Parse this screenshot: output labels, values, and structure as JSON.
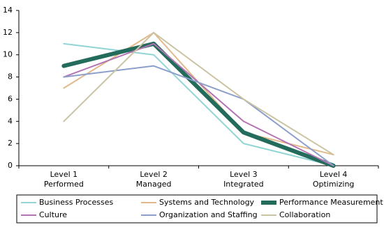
{
  "chart_data": {
    "type": "line",
    "categories": [
      "Level 1 Performed",
      "Level 2 Managed",
      "Level 3 Integrated",
      "Level 4 Optimizing"
    ],
    "series": [
      {
        "name": "Business Processes",
        "color": "#93d4d6",
        "width": 2,
        "values": [
          11,
          10,
          2,
          0
        ]
      },
      {
        "name": "Systems and Technology",
        "color": "#e2b98c",
        "width": 2,
        "values": [
          7,
          12,
          3,
          1
        ]
      },
      {
        "name": "Performance Measurement",
        "color": "#236b5b",
        "width": 6,
        "values": [
          9,
          11,
          3,
          0
        ]
      },
      {
        "name": "Culture",
        "color": "#b374b3",
        "width": 2,
        "values": [
          8,
          11,
          4,
          0
        ]
      },
      {
        "name": "Organization and Staffing",
        "color": "#8c9fcb",
        "width": 2,
        "values": [
          8,
          9,
          6,
          0
        ]
      },
      {
        "name": "Collaboration",
        "color": "#cbc4a2",
        "width": 2,
        "values": [
          4,
          12,
          6,
          1
        ]
      }
    ],
    "ylim": [
      0,
      14
    ],
    "yticks": [
      0,
      2,
      4,
      6,
      8,
      10,
      12,
      14
    ],
    "grid": false
  }
}
